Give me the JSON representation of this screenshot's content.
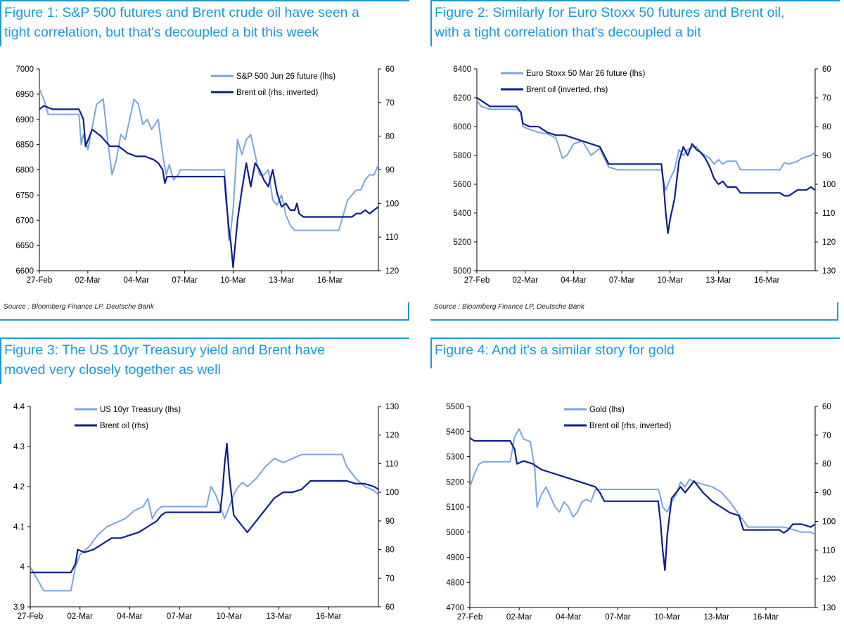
{
  "colors": {
    "title": "#1a9ad6",
    "light": "#7aa5de",
    "dark": "#0d1e8c"
  },
  "source": "Source : Bloomberg Finance LP, Deutsche Bank",
  "chart_data": [
    {
      "type": "line",
      "title": "Figure 1: S&P 500 futures and Brent crude oil have seen a tight correlation, but that's decoupled a bit this week",
      "title_lines": [
        "Figure 1: S&P 500 futures and Brent crude oil have seen a",
        "tight correlation, but that's decoupled a bit this week"
      ],
      "x_ticks": [
        "27-Feb",
        "02-Mar",
        "04-Mar",
        "07-Mar",
        "10-Mar",
        "13-Mar",
        "16-Mar"
      ],
      "left_axis": {
        "ticks": [
          7000,
          6950,
          6900,
          6850,
          6800,
          6750,
          6700,
          6650,
          6600
        ],
        "ylim": [
          6600,
          7000
        ]
      },
      "right_axis": {
        "ticks": [
          60,
          70,
          80,
          90,
          100,
          110,
          120
        ],
        "ylim": [
          60,
          120
        ],
        "inverted": true
      },
      "series": [
        {
          "name": "S&P 500 Jun 26 future (lhs)",
          "axis": "left",
          "color": "#7aa5de",
          "x": [
            0.0,
            0.1,
            0.2,
            0.5,
            0.7,
            0.9,
            0.95,
            1.0,
            1.1,
            1.3,
            1.45,
            1.55,
            1.65,
            1.75,
            1.85,
            1.95,
            2.05,
            2.15,
            2.25,
            2.35,
            2.45,
            2.55,
            2.7,
            2.8,
            2.88,
            2.95,
            3.05,
            3.15,
            3.2,
            3.3,
            3.6,
            3.9,
            4.2,
            4.25,
            4.3,
            4.35,
            4.4,
            4.5,
            4.6,
            4.7,
            4.8,
            4.9,
            5.0,
            5.1,
            5.2,
            5.3,
            5.4,
            5.5,
            5.6,
            5.7,
            5.8,
            5.9,
            6.0,
            6.1,
            6.2,
            6.6,
            6.8,
            7.0,
            7.1,
            7.2,
            7.3,
            7.4,
            7.5,
            7.6,
            7.7
          ],
          "y": [
            6960,
            6940,
            6910,
            6910,
            6910,
            6910,
            6850,
            6870,
            6840,
            6930,
            6940,
            6860,
            6790,
            6820,
            6870,
            6860,
            6900,
            6940,
            6930,
            6890,
            6900,
            6880,
            6900,
            6830,
            6790,
            6810,
            6780,
            6790,
            6800,
            6800,
            6800,
            6800,
            6800,
            6750,
            6660,
            6680,
            6720,
            6860,
            6830,
            6860,
            6870,
            6830,
            6790,
            6790,
            6800,
            6740,
            6730,
            6750,
            6710,
            6690,
            6680,
            6680,
            6680,
            6680,
            6680,
            6680,
            6680,
            6740,
            6750,
            6760,
            6760,
            6780,
            6790,
            6790,
            6810
          ]
        },
        {
          "name": "Brent oil (rhs, inverted)",
          "axis": "right",
          "color": "#0d1e8c",
          "x": [
            0.0,
            0.1,
            0.3,
            0.6,
            0.9,
            1.0,
            1.05,
            1.2,
            1.4,
            1.6,
            1.8,
            2.0,
            2.2,
            2.4,
            2.6,
            2.7,
            2.8,
            2.85,
            2.9,
            3.0,
            3.2,
            3.6,
            3.9,
            4.2,
            4.25,
            4.3,
            4.35,
            4.4,
            4.5,
            4.6,
            4.7,
            4.8,
            4.9,
            5.0,
            5.1,
            5.2,
            5.3,
            5.4,
            5.5,
            5.6,
            5.7,
            5.8,
            5.85,
            5.9,
            6.0,
            6.2,
            6.6,
            6.9,
            7.0,
            7.1,
            7.2,
            7.3,
            7.4,
            7.5,
            7.6,
            7.7
          ],
          "y": [
            72,
            71,
            72,
            72,
            72,
            75,
            83,
            78,
            80,
            83,
            83,
            85,
            86,
            86,
            87,
            88,
            90,
            94,
            92,
            92,
            92,
            92,
            92,
            92,
            100,
            107,
            112,
            119,
            105,
            96,
            88,
            95,
            88,
            90,
            93,
            95,
            90,
            97,
            101,
            100,
            102,
            102,
            100,
            103,
            104,
            104,
            104,
            104,
            104,
            104,
            103,
            103,
            102,
            103,
            102,
            101
          ]
        }
      ]
    },
    {
      "type": "line",
      "title": "Figure 2: Similarly for Euro Stoxx 50 futures and Brent oil, with a tight correlation that's decoupled a bit",
      "title_lines": [
        "Figure 2: Similarly for Euro Stoxx 50 futures and Brent oil,",
        "with a tight correlation that's decoupled a bit"
      ],
      "x_ticks": [
        "27-Feb",
        "02-Mar",
        "04-Mar",
        "07-Mar",
        "10-Mar",
        "13-Mar",
        "16-Mar"
      ],
      "left_axis": {
        "ticks": [
          6400,
          6200,
          6000,
          5800,
          5600,
          5400,
          5200,
          5000
        ],
        "ylim": [
          5000,
          6400
        ]
      },
      "right_axis": {
        "ticks": [
          60,
          70,
          80,
          90,
          100,
          110,
          120,
          130
        ],
        "ylim": [
          60,
          130
        ],
        "inverted": true
      },
      "series": [
        {
          "name": "Euro Stoxx 50 Mar 26 future (lhs)",
          "axis": "left",
          "color": "#7aa5de",
          "x": [
            0.0,
            0.1,
            0.3,
            0.6,
            0.9,
            1.0,
            1.05,
            1.2,
            1.4,
            1.6,
            1.8,
            1.95,
            2.05,
            2.2,
            2.4,
            2.6,
            2.8,
            2.9,
            3.0,
            3.2,
            3.6,
            3.9,
            4.2,
            4.25,
            4.3,
            4.4,
            4.5,
            4.6,
            4.7,
            4.8,
            4.9,
            5.0,
            5.1,
            5.2,
            5.3,
            5.4,
            5.5,
            5.6,
            5.7,
            5.8,
            5.9,
            6.0,
            6.2,
            6.6,
            6.9,
            7.0,
            7.1,
            7.2,
            7.3,
            7.4,
            7.5,
            7.6,
            7.7
          ],
          "y": [
            6180,
            6140,
            6120,
            6120,
            6120,
            6100,
            6000,
            5980,
            5960,
            5950,
            5920,
            5780,
            5800,
            5880,
            5900,
            5800,
            5850,
            5780,
            5720,
            5700,
            5700,
            5700,
            5700,
            5620,
            5560,
            5640,
            5700,
            5840,
            5800,
            5840,
            5860,
            5860,
            5820,
            5800,
            5780,
            5740,
            5770,
            5740,
            5760,
            5760,
            5760,
            5700,
            5700,
            5700,
            5700,
            5750,
            5740,
            5750,
            5760,
            5780,
            5790,
            5800,
            5820
          ]
        },
        {
          "name": "Brent oil (inverted, rhs)",
          "axis": "right",
          "color": "#0d1e8c",
          "x": [
            0.0,
            0.1,
            0.3,
            0.6,
            0.9,
            1.0,
            1.05,
            1.2,
            1.4,
            1.6,
            1.8,
            2.0,
            2.2,
            2.4,
            2.6,
            2.8,
            2.9,
            3.0,
            3.2,
            3.6,
            3.9,
            4.2,
            4.25,
            4.3,
            4.35,
            4.4,
            4.5,
            4.6,
            4.7,
            4.8,
            4.9,
            5.0,
            5.1,
            5.2,
            5.3,
            5.4,
            5.5,
            5.6,
            5.7,
            5.8,
            5.9,
            6.0,
            6.2,
            6.6,
            6.9,
            7.0,
            7.1,
            7.2,
            7.3,
            7.4,
            7.5,
            7.6,
            7.7
          ],
          "y": [
            70,
            71,
            73,
            73,
            73,
            75,
            79,
            80,
            80,
            82,
            83,
            83,
            84,
            85,
            86,
            87,
            90,
            93,
            93,
            93,
            93,
            93,
            100,
            110,
            117,
            112,
            105,
            92,
            87,
            90,
            86,
            88,
            89,
            91,
            94,
            98,
            100,
            99,
            101,
            101,
            101,
            103,
            103,
            103,
            103,
            104,
            104,
            103,
            102,
            102,
            102,
            101,
            102
          ]
        }
      ]
    },
    {
      "type": "line",
      "title": "Figure 3: The US 10yr Treasury yield and Brent have moved very closely together as well",
      "title_lines": [
        "Figure 3: The US 10yr Treasury yield and Brent have",
        "moved very closely together as well"
      ],
      "x_ticks": [
        "27-Feb",
        "02-Mar",
        "04-Mar",
        "07-Mar",
        "10-Mar",
        "13-Mar",
        "16-Mar"
      ],
      "left_axis": {
        "ticks": [
          4.4,
          4.3,
          4.2,
          4.1,
          4,
          3.9
        ],
        "ylim": [
          3.9,
          4.4
        ]
      },
      "right_axis": {
        "ticks": [
          130,
          120,
          110,
          100,
          90,
          80,
          70,
          60
        ],
        "ylim": [
          60,
          130
        ],
        "inverted": false
      },
      "series": [
        {
          "name": "US 10yr Treasury (lhs)",
          "axis": "left",
          "color": "#7aa5de",
          "x": [
            0.0,
            0.1,
            0.2,
            0.3,
            0.6,
            0.9,
            0.95,
            1.0,
            1.1,
            1.3,
            1.5,
            1.7,
            1.9,
            2.1,
            2.3,
            2.5,
            2.6,
            2.7,
            2.8,
            2.9,
            3.0,
            3.2,
            3.6,
            3.9,
            4.0,
            4.1,
            4.2,
            4.3,
            4.4,
            4.5,
            4.6,
            4.7,
            4.8,
            5.0,
            5.2,
            5.4,
            5.6,
            5.8,
            6.0,
            6.2,
            6.6,
            6.9,
            7.0,
            7.2,
            7.4,
            7.6,
            7.7
          ],
          "y": [
            4.0,
            3.98,
            3.96,
            3.94,
            3.94,
            3.94,
            3.97,
            4.0,
            4.03,
            4.05,
            4.08,
            4.1,
            4.11,
            4.12,
            4.14,
            4.15,
            4.17,
            4.12,
            4.14,
            4.15,
            4.15,
            4.15,
            4.15,
            4.15,
            4.2,
            4.18,
            4.15,
            4.12,
            4.15,
            4.18,
            4.2,
            4.21,
            4.2,
            4.22,
            4.25,
            4.27,
            4.26,
            4.27,
            4.28,
            4.28,
            4.28,
            4.28,
            4.25,
            4.22,
            4.2,
            4.19,
            4.18
          ]
        },
        {
          "name": "Brent oil (rhs)",
          "axis": "right",
          "color": "#0d1e8c",
          "x": [
            0.0,
            0.1,
            0.3,
            0.6,
            0.9,
            1.0,
            1.05,
            1.2,
            1.4,
            1.6,
            1.8,
            2.0,
            2.2,
            2.4,
            2.6,
            2.8,
            2.9,
            3.0,
            3.2,
            3.6,
            3.9,
            4.2,
            4.25,
            4.3,
            4.35,
            4.4,
            4.5,
            4.6,
            4.7,
            4.8,
            4.9,
            5.0,
            5.1,
            5.2,
            5.4,
            5.6,
            5.8,
            6.0,
            6.2,
            6.6,
            6.9,
            7.0,
            7.2,
            7.4,
            7.6,
            7.7
          ],
          "y": [
            72,
            72,
            72,
            72,
            72,
            75,
            80,
            79,
            80,
            82,
            84,
            84,
            85,
            86,
            88,
            90,
            92,
            93,
            93,
            93,
            93,
            93,
            100,
            110,
            117,
            106,
            92,
            90,
            88,
            86,
            88,
            90,
            92,
            94,
            98,
            100,
            100,
            101,
            104,
            104,
            104,
            104,
            103,
            103,
            102,
            101
          ]
        }
      ]
    },
    {
      "type": "line",
      "title": "Figure 4: And it's a similar story for gold",
      "title_lines": [
        "Figure 4: And it's a similar story for gold"
      ],
      "x_ticks": [
        "27-Feb",
        "02-Mar",
        "04-Mar",
        "07-Mar",
        "10-Mar",
        "13-Mar",
        "16-Mar"
      ],
      "left_axis": {
        "ticks": [
          5500,
          5400,
          5300,
          5200,
          5100,
          5000,
          4900,
          4800,
          4700
        ],
        "ylim": [
          4700,
          5500
        ]
      },
      "right_axis": {
        "ticks": [
          60,
          70,
          80,
          90,
          100,
          110,
          120,
          130
        ],
        "ylim": [
          60,
          130
        ],
        "inverted": true
      },
      "series": [
        {
          "name": "Gold (lhs)",
          "axis": "left",
          "color": "#7aa5de",
          "x": [
            0.0,
            0.1,
            0.2,
            0.3,
            0.6,
            0.9,
            0.95,
            1.0,
            1.1,
            1.2,
            1.35,
            1.45,
            1.5,
            1.6,
            1.7,
            1.8,
            1.9,
            2.0,
            2.1,
            2.2,
            2.3,
            2.4,
            2.5,
            2.6,
            2.7,
            2.8,
            2.9,
            3.0,
            3.2,
            3.6,
            3.9,
            4.2,
            4.25,
            4.3,
            4.4,
            4.5,
            4.6,
            4.7,
            4.8,
            4.9,
            5.0,
            5.2,
            5.4,
            5.6,
            5.8,
            6.0,
            6.2,
            6.6,
            6.9,
            7.0,
            7.2,
            7.4,
            7.6,
            7.7
          ],
          "y": [
            5180,
            5230,
            5270,
            5280,
            5280,
            5280,
            5330,
            5380,
            5410,
            5370,
            5360,
            5250,
            5100,
            5150,
            5180,
            5140,
            5100,
            5080,
            5120,
            5100,
            5060,
            5080,
            5120,
            5130,
            5120,
            5170,
            5170,
            5170,
            5170,
            5170,
            5170,
            5170,
            5140,
            5100,
            5080,
            5120,
            5150,
            5200,
            5180,
            5210,
            5200,
            5190,
            5180,
            5160,
            5120,
            5070,
            5020,
            5020,
            5020,
            5020,
            5010,
            5000,
            5000,
            4990
          ]
        },
        {
          "name": "Brent oil (rhs, inverted)",
          "axis": "right",
          "color": "#0d1e8c",
          "x": [
            0.0,
            0.1,
            0.3,
            0.6,
            0.9,
            1.0,
            1.05,
            1.2,
            1.4,
            1.6,
            1.8,
            2.0,
            2.2,
            2.4,
            2.6,
            2.8,
            2.9,
            3.0,
            3.2,
            3.6,
            3.9,
            4.2,
            4.25,
            4.3,
            4.35,
            4.4,
            4.5,
            4.6,
            4.7,
            4.8,
            4.9,
            5.0,
            5.1,
            5.2,
            5.4,
            5.6,
            5.8,
            6.0,
            6.1,
            6.2,
            6.6,
            6.9,
            7.0,
            7.1,
            7.2,
            7.4,
            7.6,
            7.7
          ],
          "y": [
            71,
            72,
            72,
            72,
            72,
            75,
            80,
            79,
            80,
            82,
            83,
            84,
            85,
            86,
            87,
            88,
            90,
            93,
            93,
            93,
            93,
            93,
            100,
            110,
            117,
            105,
            92,
            90,
            88,
            90,
            88,
            86,
            88,
            90,
            93,
            95,
            97,
            98,
            103,
            103,
            103,
            103,
            104,
            103,
            101,
            101,
            102,
            101
          ]
        }
      ]
    }
  ]
}
